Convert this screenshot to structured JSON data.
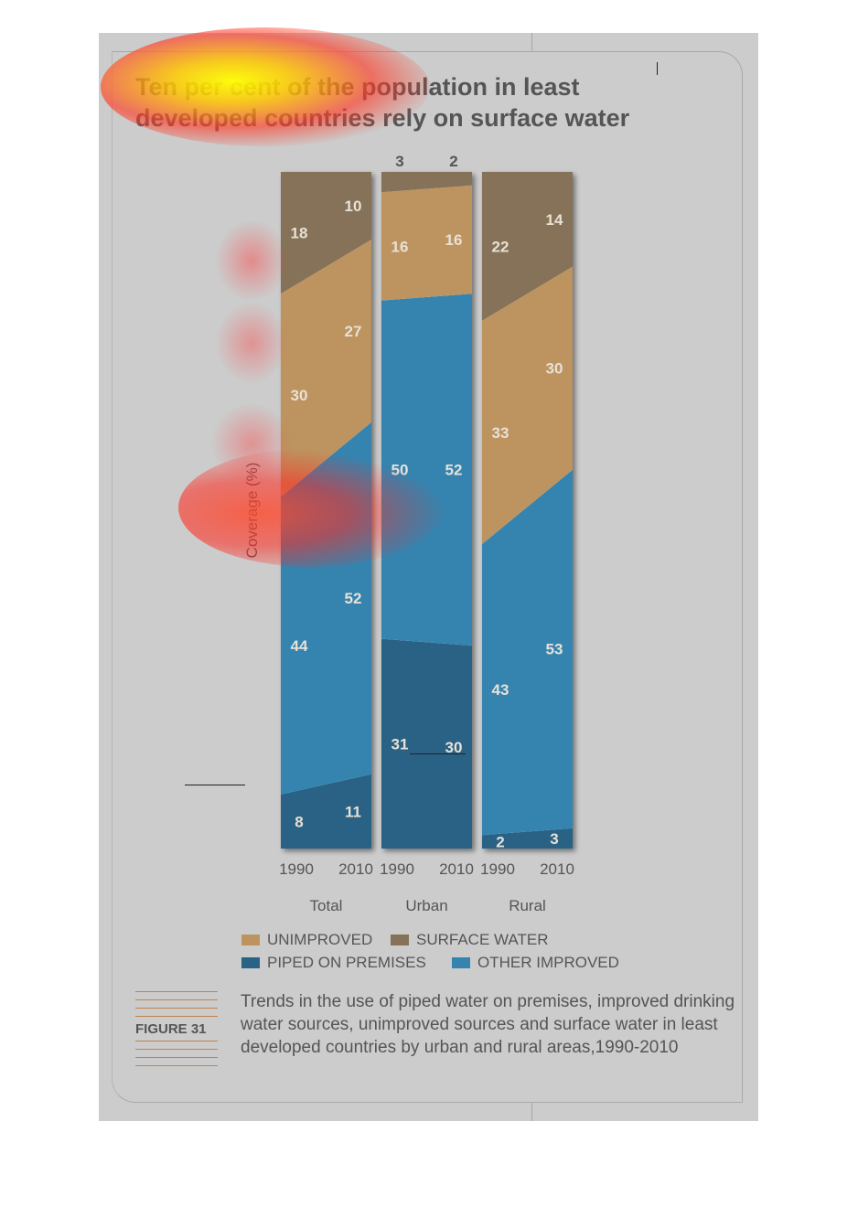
{
  "title": "Ten per cent of the population in least developed countries rely on surface water",
  "figure_label": "FIGURE 31",
  "caption": "Trends in the use of piped water on premises, improved drinking water sources, unimproved sources and surface water in least developed countries by urban and rural areas,1990-2010",
  "colors": {
    "surface_water": "#857258",
    "unimproved": "#bd9460",
    "other_improved": "#3584b0",
    "piped_on_premises": "#2a6285"
  },
  "legend": [
    {
      "label": "UNIMPROVED",
      "color": "#bd9460"
    },
    {
      "label": "SURFACE WATER",
      "color": "#857258"
    },
    {
      "label": "PIPED ON PREMISES",
      "color": "#2a6285"
    },
    {
      "label": "OTHER IMPROVED",
      "color": "#3584b0"
    }
  ],
  "chart_data": {
    "type": "area",
    "stacking": "percent",
    "ylabel": "Coverage (%)",
    "ylim": [
      0,
      100
    ],
    "panels": [
      {
        "name": "Total",
        "x": [
          "1990",
          "2010"
        ],
        "series": [
          {
            "name": "PIPED ON PREMISES",
            "values": [
              8,
              11
            ]
          },
          {
            "name": "OTHER IMPROVED",
            "values": [
              44,
              52
            ]
          },
          {
            "name": "UNIMPROVED",
            "values": [
              30,
              27
            ]
          },
          {
            "name": "SURFACE WATER",
            "values": [
              18,
              10
            ]
          }
        ]
      },
      {
        "name": "Urban",
        "x": [
          "1990",
          "2010"
        ],
        "series": [
          {
            "name": "PIPED ON PREMISES",
            "values": [
              31,
              30
            ]
          },
          {
            "name": "OTHER IMPROVED",
            "values": [
              50,
              52
            ]
          },
          {
            "name": "UNIMPROVED",
            "values": [
              16,
              16
            ]
          },
          {
            "name": "SURFACE WATER",
            "values": [
              3,
              2
            ]
          }
        ]
      },
      {
        "name": "Rural",
        "x": [
          "1990",
          "2010"
        ],
        "series": [
          {
            "name": "PIPED ON PREMISES",
            "values": [
              2,
              3
            ]
          },
          {
            "name": "OTHER IMPROVED",
            "values": [
              43,
              53
            ]
          },
          {
            "name": "UNIMPROVED",
            "values": [
              33,
              30
            ]
          },
          {
            "name": "SURFACE WATER",
            "values": [
              22,
              14
            ]
          }
        ]
      }
    ]
  }
}
